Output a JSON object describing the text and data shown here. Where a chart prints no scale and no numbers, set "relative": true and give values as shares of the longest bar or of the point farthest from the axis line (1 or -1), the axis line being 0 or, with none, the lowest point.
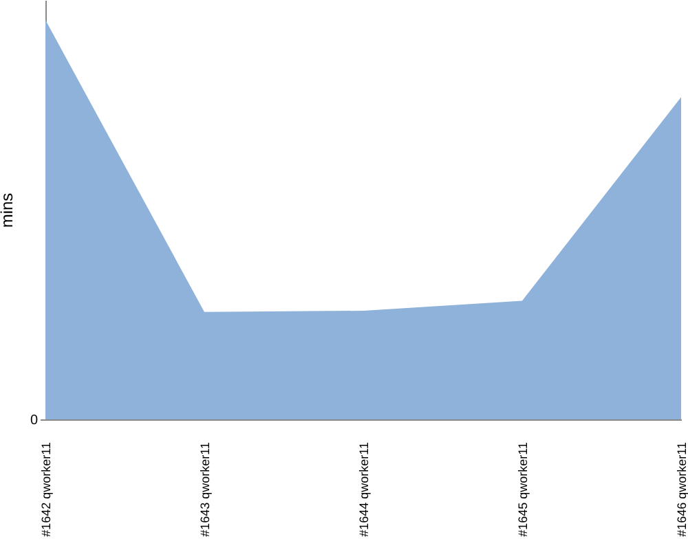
{
  "chart_data": {
    "type": "area",
    "ylabel": "mins",
    "categories": [
      "#1642 qworker11",
      "#1643 qworker11",
      "#1644 qworker11",
      "#1645 qworker11",
      "#1646 qworker11"
    ],
    "values": [
      1,
      0.269,
      0.272,
      0.297,
      0.807
    ],
    "color": "#8fb2da",
    "relative": true,
    "annotations": [
      "0"
    ]
  }
}
